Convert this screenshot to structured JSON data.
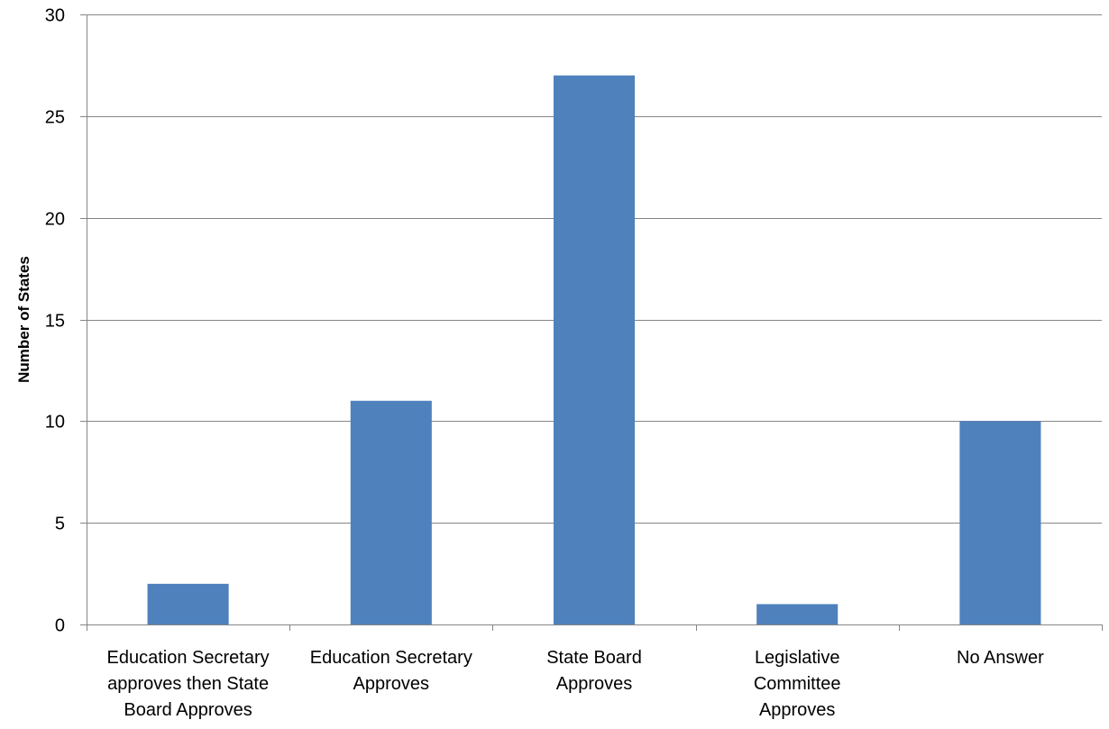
{
  "chart_data": {
    "type": "bar",
    "title": "",
    "xlabel": "",
    "ylabel": "Number of States",
    "ylim": [
      0,
      30
    ],
    "yticks": [
      0,
      5,
      10,
      15,
      20,
      25,
      30
    ],
    "grid": true,
    "legend": "none",
    "categories": [
      "Education Secretary approves then State Board Approves",
      "Education Secretary Approves",
      "State Board Approves",
      "Legislative Committee Approves",
      "No Answer"
    ],
    "category_lines": [
      [
        "Education Secretary",
        "approves then State",
        "Board Approves"
      ],
      [
        "Education Secretary",
        "Approves"
      ],
      [
        "State Board",
        "Approves"
      ],
      [
        "Legislative",
        "Committee",
        "Approves"
      ],
      [
        "No Answer"
      ]
    ],
    "values": [
      2,
      11,
      27,
      1,
      10
    ],
    "colors": {
      "bar": "#4F81BD",
      "grid": "#868686",
      "axis": "#868686"
    }
  }
}
